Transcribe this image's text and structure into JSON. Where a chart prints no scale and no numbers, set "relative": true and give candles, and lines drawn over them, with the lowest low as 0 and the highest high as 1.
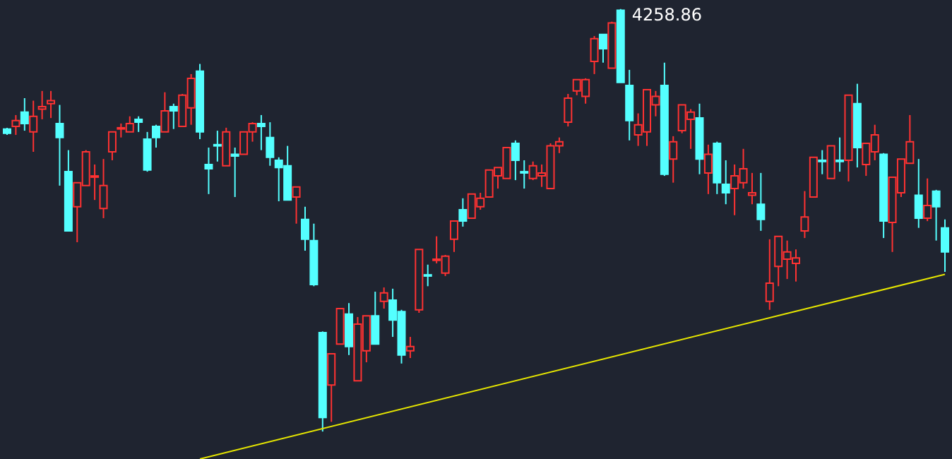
{
  "chart_data": {
    "type": "candlestick",
    "relative": true,
    "categories": [
      null,
      null,
      null,
      null,
      null,
      null,
      null,
      null,
      null,
      null,
      null,
      null,
      null,
      null,
      null,
      null,
      null,
      null,
      null,
      null,
      null,
      null,
      null,
      null,
      null,
      null,
      null,
      null,
      null,
      null,
      null,
      null,
      null,
      null,
      null,
      null,
      null,
      null,
      null,
      null,
      null,
      null,
      null,
      null,
      null,
      null,
      null,
      null,
      null,
      null,
      null,
      null,
      null,
      null,
      null,
      null,
      null,
      null,
      null,
      null,
      null,
      null,
      null,
      null,
      null,
      null,
      null,
      null,
      null,
      null,
      null,
      null,
      null,
      null,
      null,
      null,
      null,
      null,
      null,
      null,
      null,
      null,
      null,
      null,
      null,
      null,
      null,
      null,
      null,
      null,
      null,
      null,
      null,
      null,
      null,
      null,
      null,
      null,
      null,
      null,
      null,
      null,
      null,
      null,
      null,
      null,
      null,
      null
    ],
    "ohlc": [
      [
        0.716,
        0.719,
        0.702,
        0.706
      ],
      [
        0.722,
        0.749,
        0.702,
        0.736
      ],
      [
        0.756,
        0.789,
        0.712,
        0.729
      ],
      [
        0.709,
        0.783,
        0.662,
        0.746
      ],
      [
        0.763,
        0.806,
        0.739,
        0.769
      ],
      [
        0.776,
        0.806,
        0.742,
        0.783
      ],
      [
        0.729,
        0.773,
        0.582,
        0.696
      ],
      [
        0.615,
        0.666,
        0.475,
        0.475
      ],
      [
        0.532,
        0.589,
        0.448,
        0.589
      ],
      [
        0.582,
        0.666,
        0.582,
        0.662
      ],
      [
        0.602,
        0.632,
        0.548,
        0.605
      ],
      [
        0.528,
        0.645,
        0.505,
        0.582
      ],
      [
        0.662,
        0.709,
        0.642,
        0.709
      ],
      [
        0.716,
        0.729,
        0.696,
        0.719
      ],
      [
        0.709,
        0.746,
        0.709,
        0.729
      ],
      [
        0.739,
        0.746,
        0.709,
        0.732
      ],
      [
        0.692,
        0.709,
        0.615,
        0.619
      ],
      [
        0.722,
        0.726,
        0.672,
        0.696
      ],
      [
        0.709,
        0.803,
        0.709,
        0.759
      ],
      [
        0.769,
        0.776,
        0.716,
        0.759
      ],
      [
        0.722,
        0.799,
        0.722,
        0.796
      ],
      [
        0.766,
        0.846,
        0.726,
        0.836
      ],
      [
        0.853,
        0.87,
        0.692,
        0.709
      ],
      [
        0.632,
        0.672,
        0.562,
        0.622
      ],
      [
        0.679,
        0.712,
        0.639,
        0.676
      ],
      [
        0.629,
        0.719,
        0.629,
        0.709
      ],
      [
        0.656,
        0.672,
        0.555,
        0.652
      ],
      [
        0.656,
        0.709,
        0.656,
        0.709
      ],
      [
        0.709,
        0.732,
        0.686,
        0.729
      ],
      [
        0.729,
        0.749,
        0.666,
        0.722
      ],
      [
        0.696,
        0.732,
        0.629,
        0.649
      ],
      [
        0.642,
        0.649,
        0.545,
        0.625
      ],
      [
        0.629,
        0.676,
        0.548,
        0.548
      ],
      [
        0.555,
        0.579,
        0.492,
        0.579
      ],
      [
        0.502,
        0.532,
        0.428,
        0.455
      ],
      [
        0.452,
        0.492,
        0.344,
        0.348
      ],
      [
        0.234,
        0.237,
        0,
        0.033
      ],
      [
        0.11,
        0.184,
        0.023,
        0.184
      ],
      [
        0.207,
        0.291,
        0.207,
        0.291
      ],
      [
        0.278,
        0.304,
        0.181,
        0.201
      ],
      [
        0.12,
        0.271,
        0.12,
        0.254
      ],
      [
        0.191,
        0.274,
        0.164,
        0.274
      ],
      [
        0.274,
        0.331,
        0.207,
        0.207
      ],
      [
        0.308,
        0.341,
        0.291,
        0.328
      ],
      [
        0.311,
        0.338,
        0.224,
        0.264
      ],
      [
        0.284,
        0.288,
        0.161,
        0.181
      ],
      [
        0.191,
        0.224,
        0.174,
        0.201
      ],
      [
        0.288,
        0.431,
        0.281,
        0.431
      ],
      [
        0.371,
        0.395,
        0.344,
        0.368
      ],
      [
        0.405,
        0.462,
        0.398,
        0.408
      ],
      [
        0.375,
        0.418,
        0.368,
        0.415
      ],
      [
        0.455,
        0.498,
        0.425,
        0.498
      ],
      [
        0.525,
        0.552,
        0.485,
        0.498
      ],
      [
        0.505,
        0.562,
        0.505,
        0.562
      ],
      [
        0.532,
        0.565,
        0.525,
        0.552
      ],
      [
        0.555,
        0.619,
        0.555,
        0.619
      ],
      [
        0.605,
        0.625,
        0.575,
        0.625
      ],
      [
        0.599,
        0.672,
        0.599,
        0.672
      ],
      [
        0.682,
        0.689,
        0.595,
        0.642
      ],
      [
        0.615,
        0.642,
        0.575,
        0.612
      ],
      [
        0.599,
        0.639,
        0.595,
        0.629
      ],
      [
        0.605,
        0.632,
        0.579,
        0.612
      ],
      [
        0.575,
        0.682,
        0.575,
        0.676
      ],
      [
        0.676,
        0.696,
        0.659,
        0.686
      ],
      [
        0.732,
        0.799,
        0.722,
        0.789
      ],
      [
        0.806,
        0.833,
        0.796,
        0.833
      ],
      [
        0.793,
        0.836,
        0.776,
        0.833
      ],
      [
        0.876,
        0.936,
        0.846,
        0.93
      ],
      [
        0.94,
        0.94,
        0.873,
        0.906
      ],
      [
        0.86,
        0.97,
        0.86,
        0.967
      ],
      [
        0.997,
        1,
        0.826,
        0.826
      ],
      [
        0.819,
        0.856,
        0.689,
        0.736
      ],
      [
        0.702,
        0.753,
        0.676,
        0.726
      ],
      [
        0.709,
        0.809,
        0.676,
        0.809
      ],
      [
        0.773,
        0.806,
        0.746,
        0.793
      ],
      [
        0.819,
        0.873,
        0.605,
        0.609
      ],
      [
        0.645,
        0.699,
        0.589,
        0.686
      ],
      [
        0.712,
        0.773,
        0.706,
        0.773
      ],
      [
        0.739,
        0.763,
        0.669,
        0.756
      ],
      [
        0.742,
        0.776,
        0.609,
        0.645
      ],
      [
        0.612,
        0.679,
        0.562,
        0.656
      ],
      [
        0.682,
        0.686,
        0.562,
        0.589
      ],
      [
        0.585,
        0.642,
        0.538,
        0.565
      ],
      [
        0.575,
        0.632,
        0.512,
        0.605
      ],
      [
        0.589,
        0.669,
        0.575,
        0.622
      ],
      [
        0.559,
        0.612,
        0.538,
        0.565
      ],
      [
        0.538,
        0.612,
        0.475,
        0.502
      ],
      [
        0.308,
        0.455,
        0.288,
        0.351
      ],
      [
        0.391,
        0.462,
        0.344,
        0.462
      ],
      [
        0.408,
        0.452,
        0.361,
        0.425
      ],
      [
        0.398,
        0.431,
        0.355,
        0.411
      ],
      [
        0.475,
        0.569,
        0.458,
        0.508
      ],
      [
        0.555,
        0.649,
        0.555,
        0.649
      ],
      [
        0.642,
        0.666,
        0.609,
        0.639
      ],
      [
        0.599,
        0.676,
        0.599,
        0.676
      ],
      [
        0.642,
        0.696,
        0.615,
        0.639
      ],
      [
        0.642,
        0.796,
        0.592,
        0.796
      ],
      [
        0.776,
        0.823,
        0.625,
        0.672
      ],
      [
        0.632,
        0.682,
        0.605,
        0.682
      ],
      [
        0.662,
        0.726,
        0.642,
        0.702
      ],
      [
        0.656,
        0.659,
        0.458,
        0.498
      ],
      [
        0.495,
        0.602,
        0.425,
        0.602
      ],
      [
        0.565,
        0.645,
        0.555,
        0.645
      ],
      [
        0.635,
        0.749,
        0.635,
        0.686
      ],
      [
        0.559,
        0.645,
        0.482,
        0.505
      ],
      [
        0.505,
        0.599,
        0.498,
        0.535
      ],
      [
        0.569,
        0.572,
        0.452,
        0.532
      ],
      [
        0.482,
        0.502,
        0.378,
        0.425
      ]
    ],
    "colors": [
      "#54ffff",
      "#ff3232",
      "#54ffff",
      "#ff3232",
      "#ff3232",
      "#ff3232",
      "#54ffff",
      "#54ffff",
      "#ff3232",
      "#ff3232",
      "#ff3232",
      "#ff3232",
      "#ff3232",
      "#ff3232",
      "#ff3232",
      "#54ffff",
      "#54ffff",
      "#54ffff",
      "#ff3232",
      "#54ffff",
      "#ff3232",
      "#ff3232",
      "#54ffff",
      "#54ffff",
      "#54ffff",
      "#ff3232",
      "#54ffff",
      "#ff3232",
      "#ff3232",
      "#54ffff",
      "#54ffff",
      "#54ffff",
      "#54ffff",
      "#ff3232",
      "#54ffff",
      "#54ffff",
      "#54ffff",
      "#ff3232",
      "#ff3232",
      "#54ffff",
      "#ff3232",
      "#ff3232",
      "#54ffff",
      "#ff3232",
      "#54ffff",
      "#54ffff",
      "#ff3232",
      "#ff3232",
      "#54ffff",
      "#ff3232",
      "#ff3232",
      "#ff3232",
      "#54ffff",
      "#ff3232",
      "#ff3232",
      "#ff3232",
      "#ff3232",
      "#ff3232",
      "#54ffff",
      "#54ffff",
      "#ff3232",
      "#ff3232",
      "#ff3232",
      "#ff3232",
      "#ff3232",
      "#ff3232",
      "#ff3232",
      "#ff3232",
      "#54ffff",
      "#ff3232",
      "#54ffff",
      "#54ffff",
      "#ff3232",
      "#ff3232",
      "#ff3232",
      "#54ffff",
      "#ff3232",
      "#ff3232",
      "#ff3232",
      "#54ffff",
      "#ff3232",
      "#54ffff",
      "#54ffff",
      "#ff3232",
      "#ff3232",
      "#ff3232",
      "#54ffff",
      "#ff3232",
      "#ff3232",
      "#ff3232",
      "#ff3232",
      "#ff3232",
      "#ff3232",
      "#54ffff",
      "#ff3232",
      "#54ffff",
      "#ff3232",
      "#54ffff",
      "#ff3232",
      "#ff3232",
      "#54ffff",
      "#ff3232",
      "#ff3232",
      "#ff3232",
      "#54ffff",
      "#ff3232",
      "#54ffff",
      "#54ffff"
    ],
    "series": [
      {
        "type": "line",
        "color": "#e6e600",
        "values": [
          null,
          null,
          null,
          null,
          null,
          null,
          null,
          null,
          null,
          null,
          null,
          null,
          null,
          null,
          null,
          null,
          null,
          null,
          null,
          null,
          null,
          null,
          -0.065,
          null,
          null,
          null,
          null,
          null,
          null,
          null,
          null,
          null,
          null,
          null,
          null,
          null,
          null,
          null,
          null,
          null,
          null,
          null,
          null,
          null,
          null,
          null,
          null,
          null,
          null,
          null,
          null,
          null,
          null,
          null,
          null,
          null,
          null,
          null,
          null,
          null,
          null,
          null,
          null,
          null,
          null,
          null,
          null,
          null,
          null,
          null,
          null,
          null,
          null,
          null,
          null,
          null,
          null,
          null,
          null,
          null,
          null,
          null,
          null,
          null,
          null,
          null,
          null,
          null,
          null,
          null,
          null,
          null,
          null,
          null,
          null,
          null,
          null,
          null,
          null,
          null,
          null,
          null,
          null,
          null,
          null,
          null,
          null,
          0.372
        ]
      }
    ],
    "annotations": [
      "4258.86"
    ]
  }
}
